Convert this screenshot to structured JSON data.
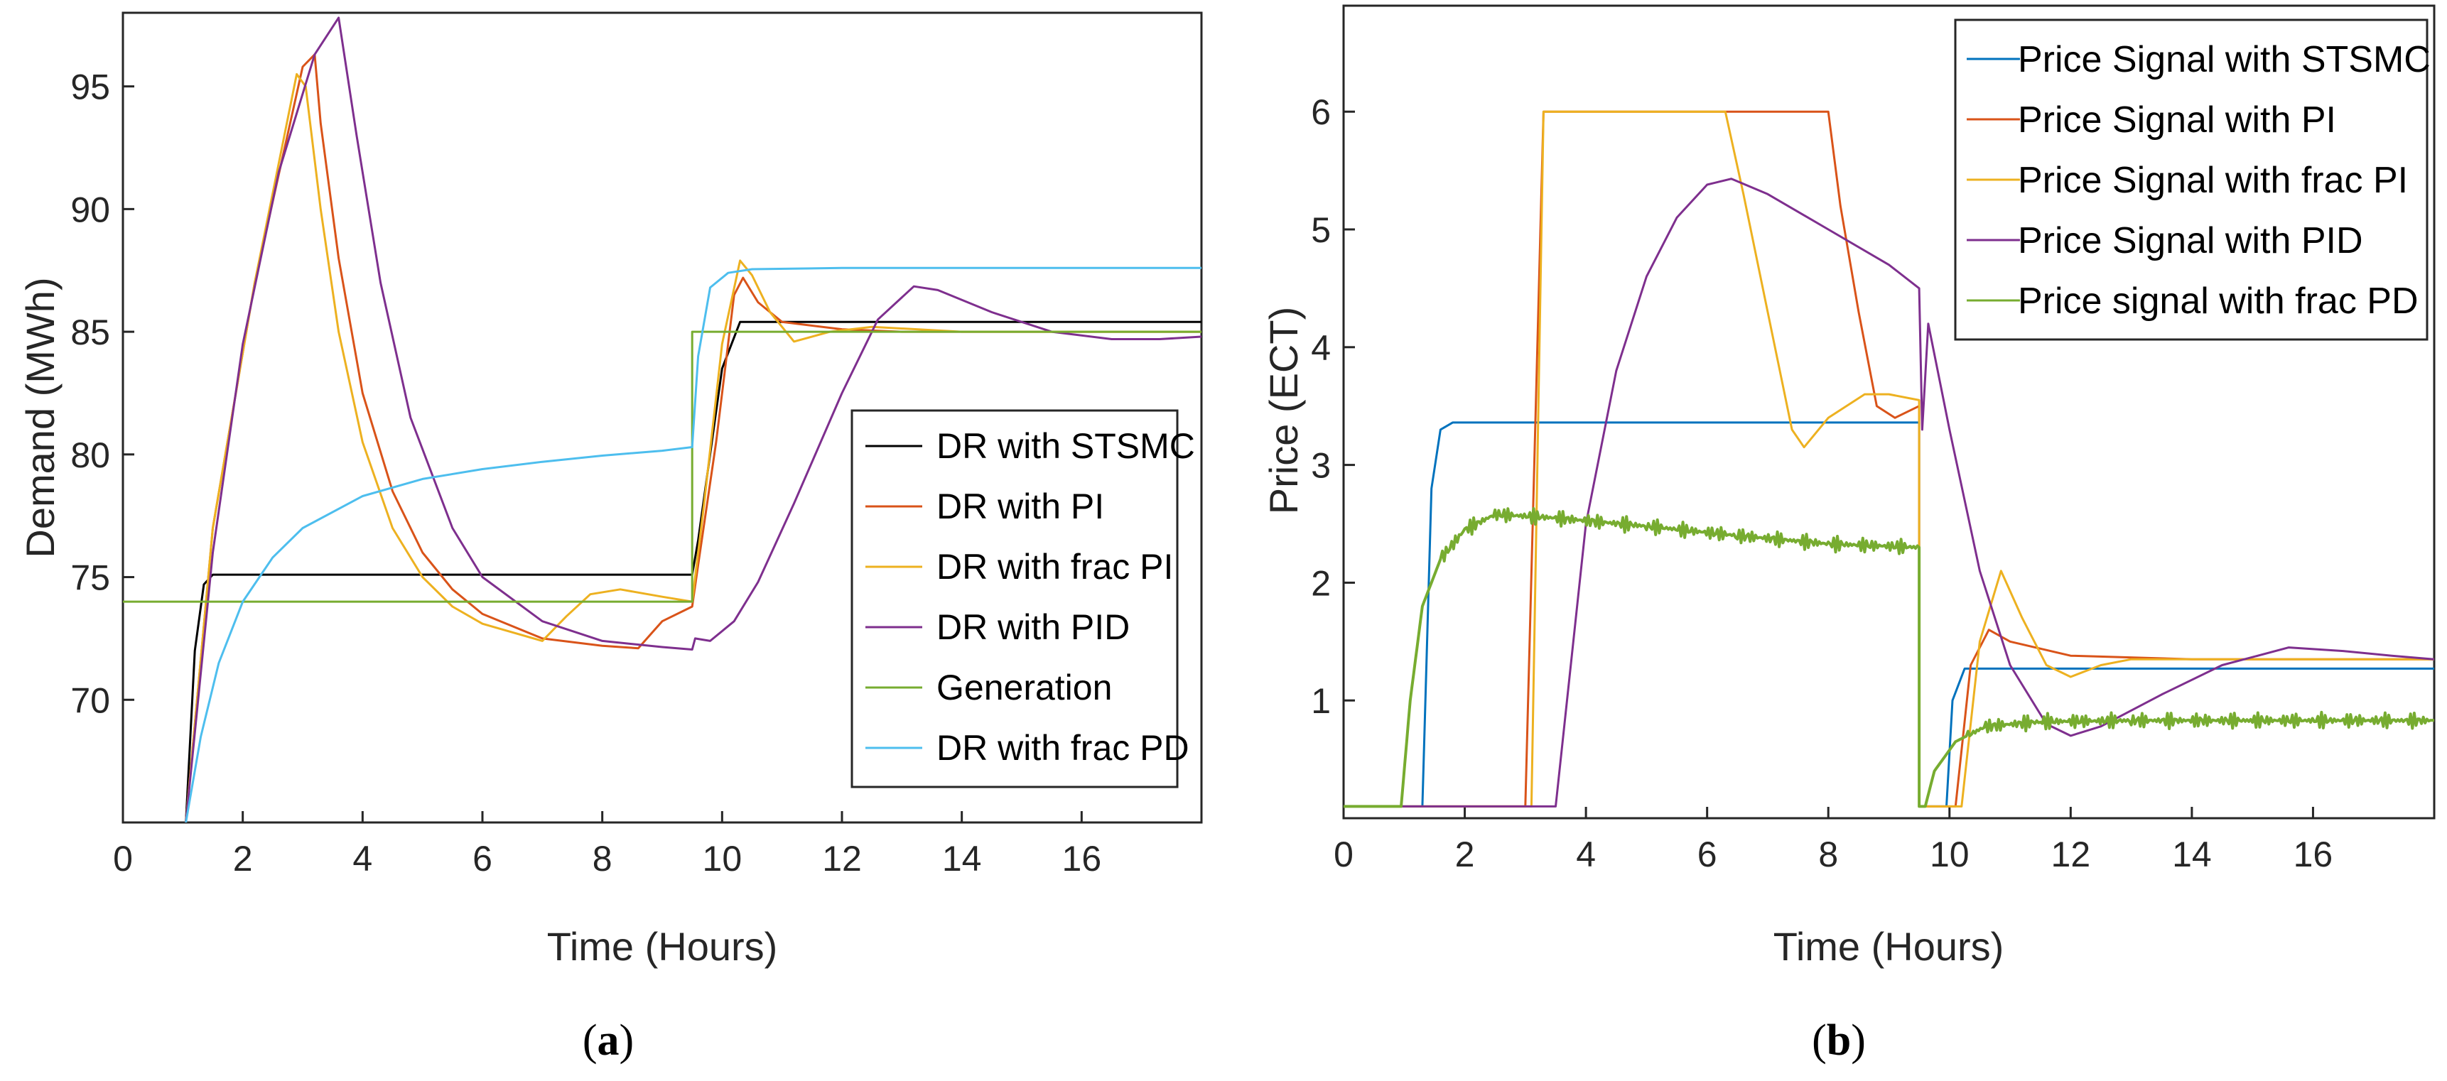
{
  "chart_data": [
    {
      "type": "line",
      "panel": "a",
      "caption_open": "(",
      "caption_letter": "a",
      "caption_close": ")",
      "title": "",
      "xlabel": "Time (Hours)",
      "ylabel": "Demand (MWh)",
      "xlim": [
        0,
        18
      ],
      "ylim": [
        65,
        98
      ],
      "xticks": [
        0,
        2,
        4,
        6,
        8,
        10,
        12,
        14,
        16
      ],
      "yticks": [
        70,
        75,
        80,
        85,
        90,
        95
      ],
      "legend_position": "bottom-right",
      "series": [
        {
          "name": "DR with STSMC",
          "color": "#000000",
          "points": [
            [
              1.05,
              65
            ],
            [
              1.2,
              72
            ],
            [
              1.35,
              74.7
            ],
            [
              1.5,
              75.1
            ],
            [
              9.5,
              75.1
            ],
            [
              9.6,
              76.5
            ],
            [
              10.0,
              83.5
            ],
            [
              10.3,
              85.4
            ],
            [
              18,
              85.4
            ]
          ]
        },
        {
          "name": "DR with PI",
          "color": "#D95319",
          "points": [
            [
              1.05,
              65
            ],
            [
              1.5,
              77
            ],
            [
              2.2,
              87
            ],
            [
              3.0,
              95.8
            ],
            [
              3.2,
              96.3
            ],
            [
              3.3,
              93.5
            ],
            [
              3.6,
              88
            ],
            [
              4.0,
              82.5
            ],
            [
              4.5,
              78.5
            ],
            [
              5.0,
              76.0
            ],
            [
              5.5,
              74.5
            ],
            [
              6.0,
              73.5
            ],
            [
              7.0,
              72.5
            ],
            [
              8.0,
              72.2
            ],
            [
              8.6,
              72.1
            ],
            [
              9.0,
              73.2
            ],
            [
              9.5,
              73.8
            ],
            [
              9.6,
              75.5
            ],
            [
              9.9,
              80.5
            ],
            [
              10.2,
              86.5
            ],
            [
              10.35,
              87.2
            ],
            [
              10.6,
              86.2
            ],
            [
              11.0,
              85.4
            ],
            [
              12.0,
              85.1
            ],
            [
              13.0,
              85.0
            ],
            [
              18,
              85.0
            ]
          ]
        },
        {
          "name": "DR with frac PI",
          "color": "#EDB120",
          "points": [
            [
              1.05,
              65
            ],
            [
              1.5,
              77
            ],
            [
              2.2,
              87
            ],
            [
              2.9,
              95.5
            ],
            [
              3.05,
              95.0
            ],
            [
              3.3,
              90
            ],
            [
              3.6,
              85
            ],
            [
              4.0,
              80.5
            ],
            [
              4.5,
              77.0
            ],
            [
              5.0,
              75.0
            ],
            [
              5.5,
              73.8
            ],
            [
              6.0,
              73.1
            ],
            [
              7.0,
              72.4
            ],
            [
              7.4,
              73.4
            ],
            [
              7.8,
              74.3
            ],
            [
              8.3,
              74.5
            ],
            [
              9.0,
              74.2
            ],
            [
              9.5,
              74.0
            ],
            [
              9.7,
              78
            ],
            [
              10.0,
              84.5
            ],
            [
              10.3,
              87.9
            ],
            [
              10.5,
              87.3
            ],
            [
              10.8,
              85.8
            ],
            [
              11.2,
              84.6
            ],
            [
              11.8,
              85.0
            ],
            [
              12.5,
              85.2
            ],
            [
              14,
              85.0
            ],
            [
              18,
              85.0
            ]
          ]
        },
        {
          "name": "DR with PID",
          "color": "#7E2F8E",
          "points": [
            [
              1.05,
              65
            ],
            [
              1.5,
              76
            ],
            [
              2.0,
              84.5
            ],
            [
              2.6,
              91.5
            ],
            [
              3.2,
              96.3
            ],
            [
              3.6,
              97.8
            ],
            [
              3.9,
              93
            ],
            [
              4.3,
              87
            ],
            [
              4.8,
              81.5
            ],
            [
              5.5,
              77.0
            ],
            [
              6.0,
              75.0
            ],
            [
              7.0,
              73.2
            ],
            [
              8.0,
              72.4
            ],
            [
              9.0,
              72.15
            ],
            [
              9.5,
              72.05
            ],
            [
              9.55,
              72.5
            ],
            [
              9.8,
              72.4
            ],
            [
              10.2,
              73.2
            ],
            [
              10.6,
              74.8
            ],
            [
              11.2,
              78.0
            ],
            [
              12.0,
              82.5
            ],
            [
              12.6,
              85.5
            ],
            [
              13.2,
              86.85
            ],
            [
              13.6,
              86.7
            ],
            [
              14.5,
              85.8
            ],
            [
              15.5,
              85.0
            ],
            [
              16.5,
              84.7
            ],
            [
              17.3,
              84.7
            ],
            [
              18,
              84.8
            ]
          ]
        },
        {
          "name": "Generation",
          "color": "#77AC30",
          "points": [
            [
              0,
              74
            ],
            [
              9.5,
              74
            ],
            [
              9.5,
              85
            ],
            [
              18,
              85
            ]
          ]
        },
        {
          "name": "DR with frac PD",
          "color": "#4DBEEE",
          "points": [
            [
              1.05,
              65
            ],
            [
              1.3,
              68.5
            ],
            [
              1.6,
              71.5
            ],
            [
              2.0,
              74.0
            ],
            [
              2.5,
              75.8
            ],
            [
              3.0,
              77.0
            ],
            [
              4.0,
              78.3
            ],
            [
              5.0,
              79.0
            ],
            [
              6.0,
              79.4
            ],
            [
              7.0,
              79.7
            ],
            [
              8.0,
              79.95
            ],
            [
              9.0,
              80.15
            ],
            [
              9.5,
              80.3
            ],
            [
              9.6,
              84
            ],
            [
              9.8,
              86.8
            ],
            [
              10.1,
              87.4
            ],
            [
              10.5,
              87.55
            ],
            [
              12.0,
              87.6
            ],
            [
              18,
              87.6
            ]
          ]
        }
      ]
    },
    {
      "type": "line",
      "panel": "b",
      "caption_open": "(",
      "caption_letter": "b",
      "caption_close": ")",
      "title": "",
      "xlabel": "Time (Hours)",
      "ylabel": "Price (ECT)",
      "xlim": [
        0,
        18
      ],
      "ylim": [
        0,
        6.9
      ],
      "xticks": [
        0,
        2,
        4,
        6,
        8,
        10,
        12,
        14,
        16
      ],
      "yticks": [
        1,
        2,
        3,
        4,
        5,
        6
      ],
      "legend_position": "top-right",
      "series": [
        {
          "name": "Price Signal with STSMC",
          "color": "#0072BD",
          "points": [
            [
              0,
              0.1
            ],
            [
              1.3,
              0.1
            ],
            [
              1.45,
              2.8
            ],
            [
              1.6,
              3.3
            ],
            [
              1.8,
              3.36
            ],
            [
              9.5,
              3.36
            ],
            [
              9.5,
              0.1
            ],
            [
              9.95,
              0.1
            ],
            [
              10.05,
              1.0
            ],
            [
              10.25,
              1.27
            ],
            [
              18,
              1.27
            ]
          ]
        },
        {
          "name": "Price Signal with PI",
          "color": "#D95319",
          "points": [
            [
              0,
              0.1
            ],
            [
              3.0,
              0.1
            ],
            [
              3.3,
              6.0
            ],
            [
              8.0,
              6.0
            ],
            [
              8.2,
              5.2
            ],
            [
              8.5,
              4.3
            ],
            [
              8.8,
              3.5
            ],
            [
              9.1,
              3.4
            ],
            [
              9.5,
              3.5
            ],
            [
              9.5,
              0.1
            ],
            [
              10.1,
              0.1
            ],
            [
              10.35,
              1.3
            ],
            [
              10.65,
              1.6
            ],
            [
              11.0,
              1.5
            ],
            [
              12.0,
              1.38
            ],
            [
              14,
              1.35
            ],
            [
              18,
              1.35
            ]
          ]
        },
        {
          "name": "Price Signal with frac PI",
          "color": "#EDB120",
          "points": [
            [
              0,
              0.1
            ],
            [
              3.1,
              0.1
            ],
            [
              3.3,
              6.0
            ],
            [
              6.3,
              6.0
            ],
            [
              6.6,
              5.3
            ],
            [
              7.0,
              4.3
            ],
            [
              7.4,
              3.3
            ],
            [
              7.6,
              3.15
            ],
            [
              8.0,
              3.4
            ],
            [
              8.6,
              3.6
            ],
            [
              9.0,
              3.6
            ],
            [
              9.5,
              3.55
            ],
            [
              9.5,
              0.1
            ],
            [
              10.2,
              0.1
            ],
            [
              10.5,
              1.5
            ],
            [
              10.85,
              2.1
            ],
            [
              11.2,
              1.7
            ],
            [
              11.6,
              1.3
            ],
            [
              12.0,
              1.2
            ],
            [
              12.5,
              1.3
            ],
            [
              13.0,
              1.35
            ],
            [
              14,
              1.35
            ],
            [
              18,
              1.35
            ]
          ]
        },
        {
          "name": "Price Signal with PID",
          "color": "#7E2F8E",
          "points": [
            [
              0,
              0.1
            ],
            [
              3.5,
              0.1
            ],
            [
              4.0,
              2.5
            ],
            [
              4.5,
              3.8
            ],
            [
              5.0,
              4.6
            ],
            [
              5.5,
              5.1
            ],
            [
              6.0,
              5.38
            ],
            [
              6.4,
              5.43
            ],
            [
              7.0,
              5.3
            ],
            [
              8.0,
              5.0
            ],
            [
              9.0,
              4.7
            ],
            [
              9.5,
              4.5
            ],
            [
              9.55,
              3.3
            ],
            [
              9.65,
              4.2
            ],
            [
              10.0,
              3.3
            ],
            [
              10.5,
              2.1
            ],
            [
              11.0,
              1.3
            ],
            [
              11.6,
              0.8
            ],
            [
              12.0,
              0.7
            ],
            [
              12.5,
              0.78
            ],
            [
              13.5,
              1.05
            ],
            [
              14.5,
              1.3
            ],
            [
              15.6,
              1.45
            ],
            [
              16.5,
              1.42
            ],
            [
              17.3,
              1.38
            ],
            [
              18,
              1.35
            ]
          ]
        },
        {
          "name": "Price signal with frac PD",
          "color": "#77AC30",
          "points": [
            [
              0,
              0.1
            ],
            [
              0.95,
              0.1
            ],
            [
              1.1,
              1.0
            ],
            [
              1.3,
              1.8
            ],
            [
              1.6,
              2.2
            ],
            [
              2.0,
              2.45
            ],
            [
              2.5,
              2.58
            ],
            [
              3.5,
              2.55
            ],
            [
              5.0,
              2.48
            ],
            [
              6.5,
              2.4
            ],
            [
              8.0,
              2.33
            ],
            [
              9.5,
              2.3
            ],
            [
              9.5,
              0.1
            ],
            [
              9.6,
              0.1
            ],
            [
              9.75,
              0.4
            ],
            [
              10.1,
              0.65
            ],
            [
              10.6,
              0.78
            ],
            [
              11.5,
              0.82
            ],
            [
              13,
              0.83
            ],
            [
              15,
              0.83
            ],
            [
              18,
              0.83
            ]
          ],
          "noise_amplitude": 0.07
        }
      ]
    }
  ]
}
